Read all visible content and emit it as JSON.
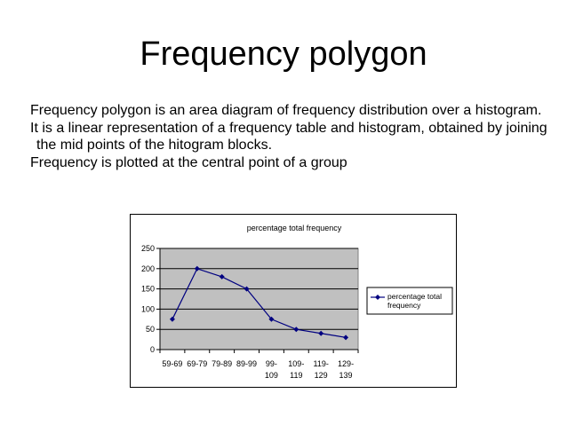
{
  "slide": {
    "title": "Frequency polygon",
    "paragraphs": [
      "Frequency polygon is an area diagram of frequency distribution over a histogram.",
      "It is a linear representation of a frequency table and histogram, obtained by joining the mid points of the hitogram blocks.",
      "Frequency is plotted at the central point of a group"
    ]
  },
  "chart_data": {
    "type": "line",
    "title": "percentage total frequency",
    "xlabel": "",
    "ylabel": "",
    "categories": [
      [
        "59-69"
      ],
      [
        "69-79"
      ],
      [
        "79-89"
      ],
      [
        "89-99"
      ],
      [
        "99-",
        "109"
      ],
      [
        "109-",
        "119"
      ],
      [
        "119-",
        "129"
      ],
      [
        "129-",
        "139"
      ]
    ],
    "series": [
      {
        "name": "percentage total frequency",
        "values": [
          75,
          200,
          180,
          150,
          75,
          50,
          40,
          30
        ],
        "color": "#000080"
      }
    ],
    "ylim": [
      0,
      250
    ],
    "yticks": [
      0,
      50,
      100,
      150,
      200,
      250
    ],
    "grid": true,
    "plot_background": "#c0c0c0",
    "legend": {
      "position": "right",
      "label_lines": [
        "percentage total",
        "frequency"
      ]
    }
  }
}
